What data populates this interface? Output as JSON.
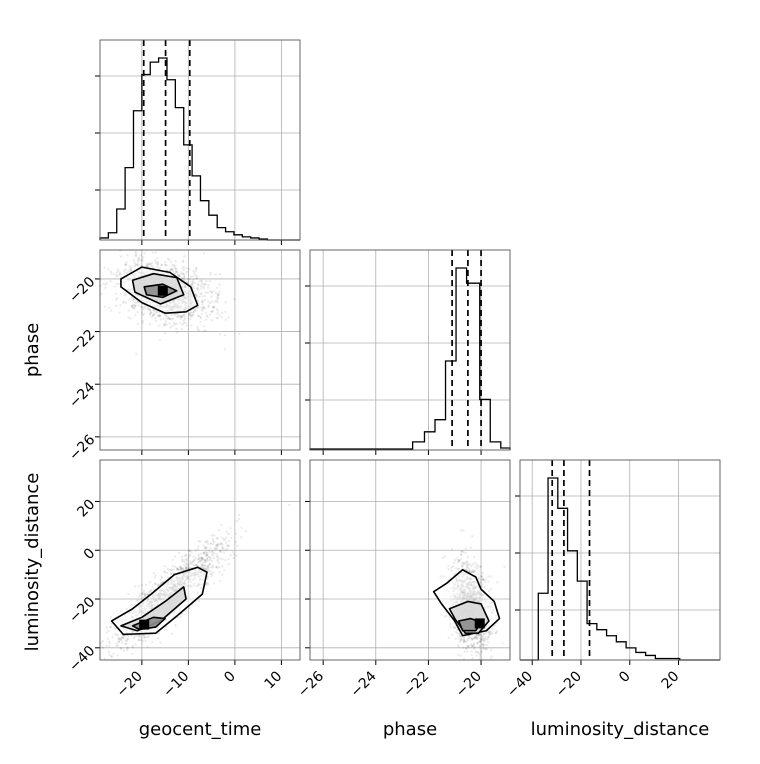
{
  "chart_data": {
    "type": "corner",
    "parameters": [
      "geocent_time",
      "phase",
      "luminosity_distance"
    ],
    "labels": {
      "geocent_time": "geocent_time",
      "phase": "phase",
      "luminosity_distance": "luminosity_distance"
    },
    "ranges": {
      "geocent_time": [
        -29,
        14
      ],
      "phase": [
        -26.5,
        -18.9
      ],
      "luminosity_distance": [
        -45,
        37
      ]
    },
    "ticks": {
      "geocent_time": [
        -20,
        -10,
        0,
        10
      ],
      "phase": [
        -26,
        -24,
        -22,
        -20
      ],
      "luminosity_distance": [
        -40,
        -20,
        0,
        20
      ]
    },
    "tick_labels": {
      "geocent_time": [
        "−20",
        "−10",
        "0",
        "10"
      ],
      "phase": [
        "−26",
        "−24",
        "−22",
        "−20"
      ],
      "luminosity_distance": [
        "−40",
        "−20",
        "0",
        "20"
      ]
    },
    "quantiles": {
      "geocent_time": [
        -19.6,
        -14.9,
        -9.7
      ],
      "phase": [
        -21.1,
        -20.5,
        -20.0
      ],
      "luminosity_distance": [
        -31.8,
        -27.0,
        -16.5
      ]
    },
    "histograms": {
      "geocent_time": {
        "edges": [
          -29,
          -27.2,
          -25.4,
          -23.6,
          -21.8,
          -20,
          -18.2,
          -16.4,
          -14.6,
          -12.8,
          -11,
          -9.2,
          -7.4,
          -5.6,
          -3.8,
          -2,
          -0.2,
          1.6,
          3.4,
          5.2,
          7,
          14
        ],
        "counts": [
          2,
          7,
          30,
          70,
          125,
          160,
          172,
          176,
          155,
          128,
          92,
          62,
          38,
          24,
          12,
          8,
          5,
          3,
          2,
          1,
          0
        ]
      },
      "phase": {
        "edges": [
          -26.5,
          -22.6,
          -22.15,
          -21.75,
          -21.35,
          -20.95,
          -20.55,
          -20.05,
          -19.65,
          -19.25,
          -18.9
        ],
        "counts": [
          1,
          8,
          18,
          30,
          88,
          180,
          165,
          50,
          8,
          2
        ]
      },
      "luminosity_distance": {
        "edges": [
          -45,
          -37.5,
          -33.5,
          -29.5,
          -25.5,
          -21.5,
          -17.5,
          -13.5,
          -9.5,
          -5.5,
          -1.5,
          2.5,
          6.5,
          10.5,
          20.5,
          37
        ],
        "counts": [
          0,
          44,
          120,
          100,
          72,
          52,
          24,
          20,
          16,
          12,
          8,
          5,
          3,
          1,
          0
        ]
      }
    },
    "contours": {
      "phase_vs_geocent_time": [
        [
          [
            -24.5,
            -20.0
          ],
          [
            -20.0,
            -19.55
          ],
          [
            -14.0,
            -19.75
          ],
          [
            -9.5,
            -20.3
          ],
          [
            -8.0,
            -21.0
          ],
          [
            -10.5,
            -21.25
          ],
          [
            -15.0,
            -21.3
          ],
          [
            -20.0,
            -20.9
          ],
          [
            -24.5,
            -20.3
          ]
        ],
        [
          [
            -22.0,
            -20.05
          ],
          [
            -17.5,
            -19.8
          ],
          [
            -12.5,
            -19.95
          ],
          [
            -11.0,
            -20.6
          ],
          [
            -16.0,
            -20.95
          ],
          [
            -21.5,
            -20.5
          ]
        ],
        [
          [
            -19.5,
            -20.3
          ],
          [
            -15.5,
            -20.2
          ],
          [
            -12.5,
            -20.45
          ],
          [
            -15.5,
            -20.7
          ],
          [
            -19.0,
            -20.6
          ]
        ]
      ],
      "luminosity_distance_vs_geocent_time": [
        [
          [
            -26.5,
            -29.0
          ],
          [
            -22.0,
            -24.0
          ],
          [
            -18.0,
            -18.0
          ],
          [
            -13.0,
            -10.0
          ],
          [
            -8.0,
            -7.0
          ],
          [
            -6.0,
            -9.0
          ],
          [
            -7.0,
            -18.0
          ],
          [
            -12.5,
            -27.0
          ],
          [
            -17.0,
            -34.0
          ],
          [
            -24.0,
            -34.5
          ]
        ],
        [
          [
            -24.5,
            -31.0
          ],
          [
            -20.0,
            -27.5
          ],
          [
            -15.0,
            -21.0
          ],
          [
            -11.0,
            -15.0
          ],
          [
            -10.5,
            -20.0
          ],
          [
            -16.0,
            -29.0
          ],
          [
            -21.0,
            -33.0
          ]
        ],
        [
          [
            -22.0,
            -31.0
          ],
          [
            -17.5,
            -27.5
          ],
          [
            -15.0,
            -28.0
          ],
          [
            -17.0,
            -31.5
          ],
          [
            -20.5,
            -32.5
          ]
        ]
      ],
      "luminosity_distance_vs_phase": [
        [
          [
            -21.3,
            -13.5
          ],
          [
            -20.7,
            -8.0
          ],
          [
            -20.2,
            -11.0
          ],
          [
            -20.0,
            -16.0
          ],
          [
            -19.5,
            -21.0
          ],
          [
            -19.3,
            -28.0
          ],
          [
            -19.8,
            -33.0
          ],
          [
            -20.7,
            -35.0
          ],
          [
            -21.0,
            -29.0
          ],
          [
            -21.5,
            -22.0
          ],
          [
            -21.8,
            -17.0
          ]
        ],
        [
          [
            -21.2,
            -24.0
          ],
          [
            -20.5,
            -21.0
          ],
          [
            -20.0,
            -22.0
          ],
          [
            -19.7,
            -29.0
          ],
          [
            -20.1,
            -34.0
          ],
          [
            -20.6,
            -34.0
          ],
          [
            -21.0,
            -28.0
          ]
        ],
        [
          [
            -20.85,
            -29.0
          ],
          [
            -20.4,
            -28.0
          ],
          [
            -20.0,
            -29.5
          ],
          [
            -20.2,
            -33.0
          ],
          [
            -20.7,
            -33.0
          ]
        ]
      ]
    },
    "density_cores": {
      "phase_vs_geocent_time": [
        -15.5,
        -20.45
      ],
      "luminosity_distance_vs_geocent_time": [
        -19.5,
        -30.5
      ],
      "luminosity_distance_vs_phase": [
        -20.05,
        -30.0
      ]
    },
    "grid": true
  }
}
